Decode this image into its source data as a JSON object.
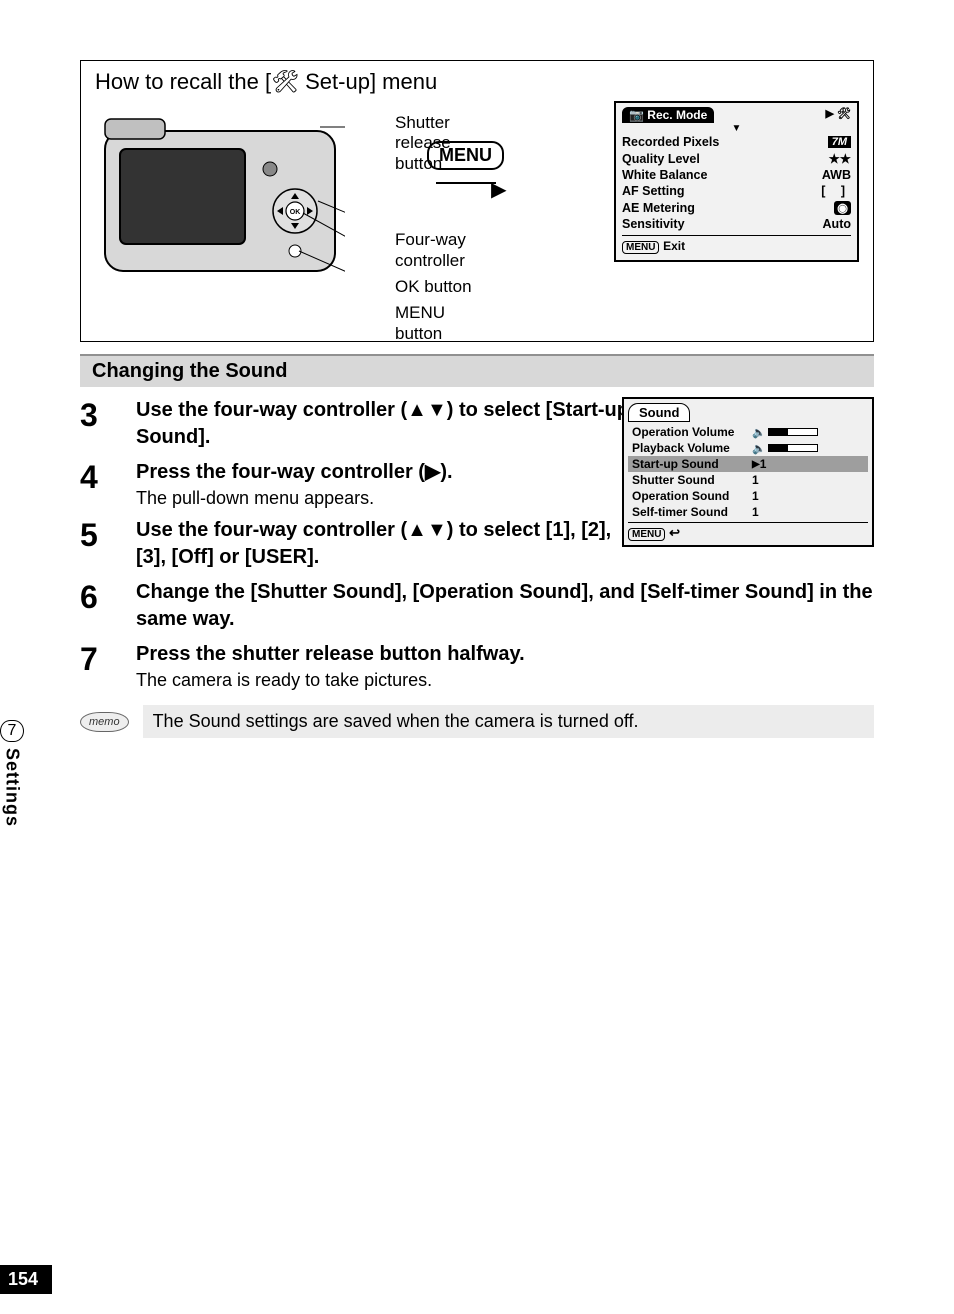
{
  "pageNumber": "154",
  "sideTab": {
    "number": "7",
    "label": "Settings"
  },
  "recallBox": {
    "title_pre": "How to recall the [",
    "title_post": " Set-up] menu",
    "callouts": {
      "shutter": "Shutter release button",
      "fourway": "Four-way controller",
      "ok": "OK button",
      "menu": "MENU button"
    },
    "menuPill": "MENU",
    "recMode": {
      "header": "Rec. Mode",
      "rows": [
        {
          "label": "Recorded Pixels",
          "value": "7M",
          "valueType": "pixbox"
        },
        {
          "label": "Quality Level",
          "value": "★★",
          "valueType": "text"
        },
        {
          "label": "White Balance",
          "value": "AWB",
          "valueType": "text"
        },
        {
          "label": "AF Setting",
          "value": "[ ]",
          "valueType": "af"
        },
        {
          "label": "AE Metering",
          "value": "◉",
          "valueType": "meter"
        },
        {
          "label": "Sensitivity",
          "value": "Auto",
          "valueType": "text"
        }
      ],
      "exit": "Exit"
    }
  },
  "sectionHeading": "Changing the Sound",
  "steps": [
    {
      "num": "3",
      "main": "Use the four-way controller (▲▼) to select [Start-up Sound].",
      "sub": "",
      "constrain": true
    },
    {
      "num": "4",
      "main": "Press the four-way controller (▶).",
      "sub": "The pull-down menu appears.",
      "constrain": true
    },
    {
      "num": "5",
      "main": "Use the four-way controller (▲▼) to select [1], [2], [3], [Off] or [USER].",
      "sub": "",
      "constrain": true
    },
    {
      "num": "6",
      "main": "Change the [Shutter Sound], [Operation Sound], and [Self-timer Sound] in the same way.",
      "sub": ""
    },
    {
      "num": "7",
      "main": "Press the shutter release button halfway.",
      "sub": "The camera is ready to take pictures."
    }
  ],
  "soundScreen": {
    "tab": "Sound",
    "rows": [
      {
        "label": "Operation Volume",
        "type": "vol"
      },
      {
        "label": "Playback Volume",
        "type": "vol"
      },
      {
        "label": "Start-up Sound",
        "value": "1",
        "type": "sel",
        "hl": true
      },
      {
        "label": "Shutter Sound",
        "value": "1",
        "type": "val"
      },
      {
        "label": "Operation Sound",
        "value": "1",
        "type": "val"
      },
      {
        "label": "Self-timer Sound",
        "value": "1",
        "type": "val"
      }
    ],
    "menuBtn": "MENU"
  },
  "memo": {
    "icon": "memo",
    "text": "The Sound settings are saved when the camera is turned off."
  },
  "colors": {
    "headingBg": "#d8d8d8",
    "memoBg": "#ececec"
  }
}
